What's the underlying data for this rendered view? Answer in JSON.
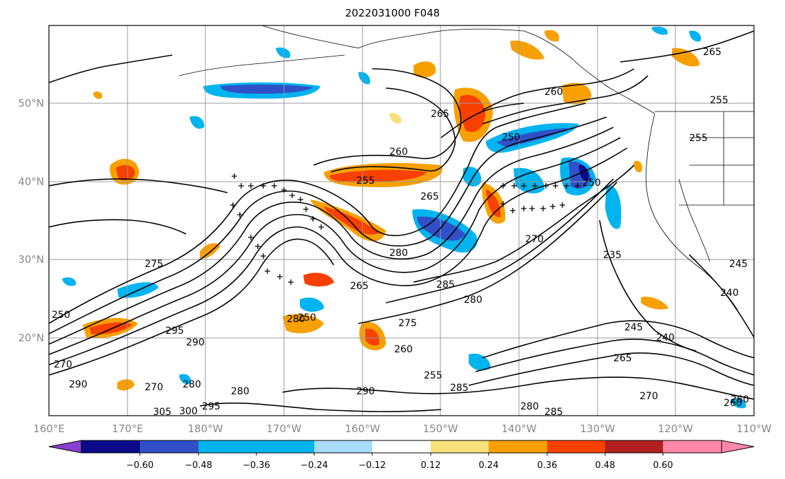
{
  "title": "2022031000 F048",
  "colors": {
    "contour": "#000000",
    "grid": "#9a9a9a",
    "coast": "#000000"
  },
  "map": {
    "lon_labels": [
      "160°E",
      "170°E",
      "180°W",
      "170°W",
      "160°W",
      "150°W",
      "140°W",
      "130°W",
      "120°W",
      "110°W"
    ],
    "lat_labels": [
      "50°N",
      "40°N",
      "30°N",
      "20°N"
    ],
    "contour_labels": [
      "265",
      "260",
      "250",
      "255",
      "260",
      "255",
      "265",
      "255",
      "250",
      "265",
      "270",
      "280",
      "285",
      "280",
      "275",
      "260",
      "255",
      "285",
      "290",
      "265",
      "235",
      "245",
      "240",
      "265",
      "270",
      "280",
      "285",
      "260",
      "280",
      "295",
      "290",
      "280",
      "270",
      "300",
      "305",
      "295",
      "290",
      "270",
      "250",
      "280",
      "240",
      "245",
      "260",
      "275",
      "250"
    ]
  },
  "colorbar": {
    "ticks": [
      "−0.60",
      "−0.48",
      "−0.36",
      "−0.24",
      "−0.12",
      "0.12",
      "0.24",
      "0.36",
      "0.48",
      "0.60"
    ],
    "colors": [
      "#8a3fd0",
      "#0a0a88",
      "#3050c8",
      "#00b4f0",
      "#a8dcf8",
      "#ffffff",
      "#f8e07a",
      "#f8a000",
      "#f84000",
      "#b02020",
      "#ff88a8"
    ]
  }
}
